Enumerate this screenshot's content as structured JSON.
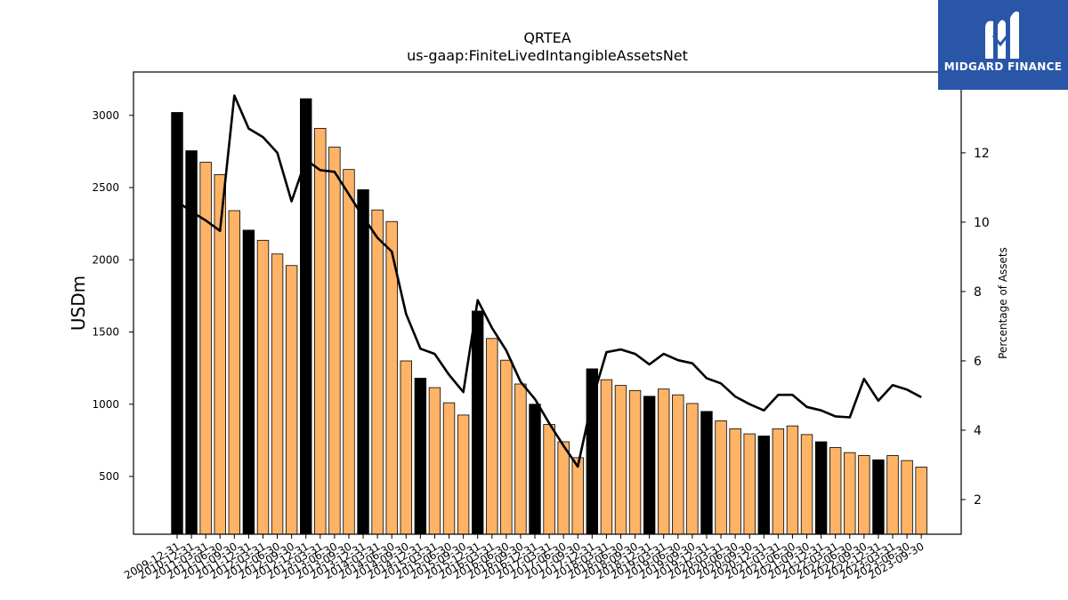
{
  "chart_data": {
    "type": "bar+line",
    "title": "QRTEA",
    "subtitle": "us-gaap:FiniteLivedIntangibleAssetsNet",
    "ylabel": "USDm",
    "y2label": "Percentage of Assets",
    "ylim": [
      100,
      3300
    ],
    "y2lim": [
      1,
      14.33
    ],
    "yticks": [
      500,
      1000,
      1500,
      2000,
      2500,
      3000
    ],
    "y2ticks": [
      2,
      4,
      6,
      8,
      10,
      12
    ],
    "colors": {
      "annual": "#000000",
      "quarter": "#ffb366",
      "line": "#000000"
    },
    "categories": [
      "2009-12-31",
      "2010-12-31",
      "2011-03-31",
      "2011-06-30",
      "2011-09-30",
      "2011-12-31",
      "2012-03-31",
      "2012-06-30",
      "2012-09-30",
      "2012-12-31",
      "2013-03-31",
      "2013-06-30",
      "2013-09-30",
      "2013-12-31",
      "2014-03-31",
      "2014-06-30",
      "2014-09-30",
      "2014-12-31",
      "2015-03-31",
      "2015-06-30",
      "2015-09-30",
      "2015-12-31",
      "2016-03-31",
      "2016-06-30",
      "2016-09-30",
      "2016-12-31",
      "2017-03-31",
      "2017-06-30",
      "2017-09-30",
      "2017-12-31",
      "2018-03-31",
      "2018-06-30",
      "2018-09-30",
      "2018-12-31",
      "2019-03-31",
      "2019-06-30",
      "2019-09-30",
      "2019-12-31",
      "2020-03-31",
      "2020-06-30",
      "2020-09-30",
      "2020-12-31",
      "2021-03-31",
      "2021-06-30",
      "2021-09-30",
      "2021-12-31",
      "2022-03-31",
      "2022-06-30",
      "2022-09-30",
      "2022-12-31",
      "2023-03-31",
      "2023-06-30",
      "2023-09-30"
    ],
    "annual_flags": [
      1,
      1,
      0,
      0,
      0,
      1,
      0,
      0,
      0,
      1,
      0,
      0,
      0,
      1,
      0,
      0,
      0,
      1,
      0,
      0,
      0,
      1,
      0,
      0,
      0,
      1,
      0,
      0,
      0,
      1,
      0,
      0,
      0,
      1,
      0,
      0,
      0,
      1,
      0,
      0,
      0,
      1,
      0,
      0,
      0,
      1,
      0,
      0,
      0,
      1,
      0,
      0,
      0
    ],
    "series": [
      {
        "name": "USDm",
        "kind": "bar",
        "values": [
          3020,
          2755,
          2675,
          2590,
          2340,
          2205,
          2135,
          2040,
          1960,
          3115,
          2910,
          2780,
          2625,
          2485,
          2345,
          2265,
          1300,
          1180,
          1115,
          1010,
          925,
          1645,
          1455,
          1305,
          1140,
          1000,
          860,
          740,
          630,
          1245,
          1170,
          1130,
          1095,
          1055,
          1105,
          1065,
          1005,
          950,
          885,
          830,
          795,
          780,
          830,
          850,
          790,
          740,
          700,
          665,
          645,
          615,
          645,
          610,
          565
        ]
      },
      {
        "name": "Percentage of Assets",
        "kind": "line",
        "axis": "right",
        "values": [
          10.6,
          10.3,
          10.05,
          9.75,
          13.65,
          12.7,
          12.45,
          12.0,
          10.6,
          11.8,
          11.5,
          11.45,
          10.8,
          10.15,
          9.55,
          9.15,
          7.35,
          6.35,
          6.2,
          5.6,
          5.1,
          7.75,
          6.95,
          6.3,
          5.4,
          4.9,
          4.2,
          3.55,
          2.95,
          4.85,
          6.25,
          6.33,
          6.2,
          5.9,
          6.2,
          6.02,
          5.93,
          5.5,
          5.35,
          4.97,
          4.75,
          4.57,
          5.02,
          5.02,
          4.67,
          4.57,
          4.4,
          4.37,
          5.48,
          4.85,
          5.3,
          5.17,
          4.95
        ]
      }
    ]
  },
  "logo": {
    "name": "MIDGARD FINANCE",
    "icon": "midgard-m-logo"
  }
}
